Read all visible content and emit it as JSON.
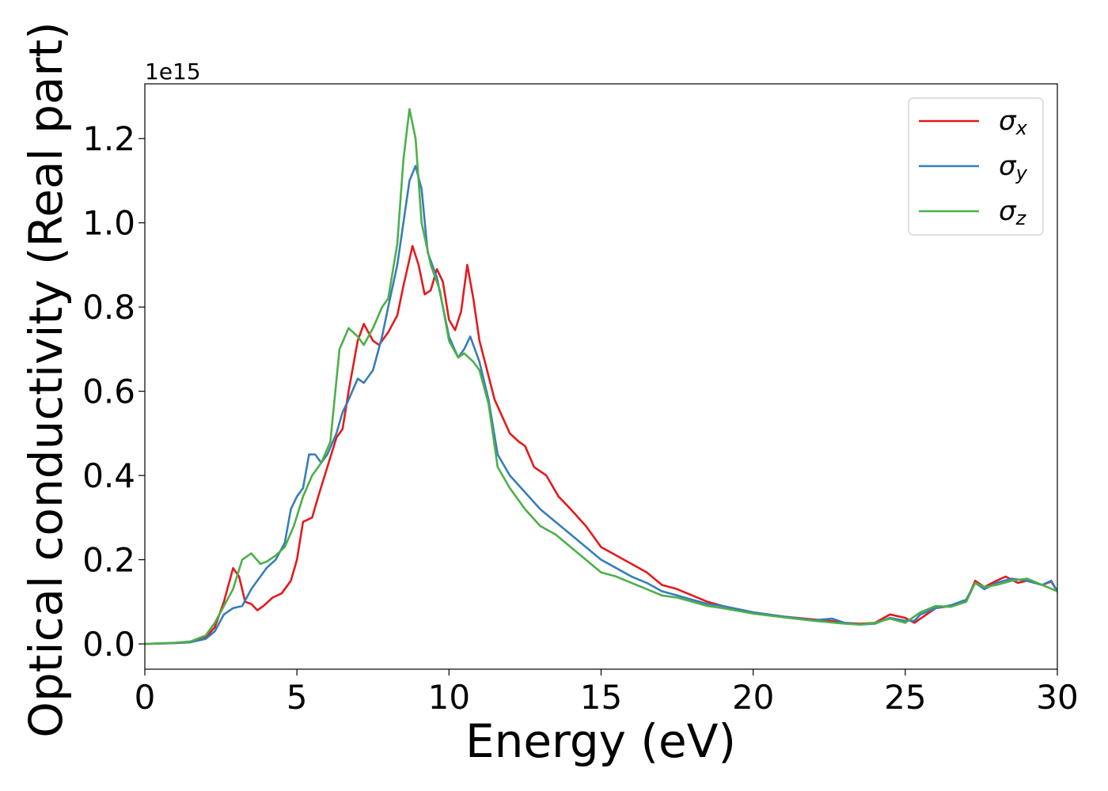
{
  "chart_data": {
    "type": "line",
    "xlabel": "Energy (eV)",
    "ylabel": "Optical conductivity (Real part)",
    "y_offset_label": "1e15",
    "xlim": [
      0,
      30
    ],
    "ylim": [
      -0.06,
      1.33
    ],
    "x_ticks": [
      0,
      5,
      10,
      15,
      20,
      25,
      30
    ],
    "x_tick_labels": [
      "0",
      "5",
      "10",
      "15",
      "20",
      "25",
      "30"
    ],
    "y_ticks": [
      0.0,
      0.2,
      0.4,
      0.6,
      0.8,
      1.0,
      1.2
    ],
    "y_tick_labels": [
      "0.0",
      "0.2",
      "0.4",
      "0.6",
      "0.8",
      "1.0",
      "1.2"
    ],
    "legend_position": "top-right",
    "series": [
      {
        "name": "σx",
        "symbol": "σ",
        "subscript": "x",
        "color": "#e41a1c",
        "points": [
          [
            0,
            0
          ],
          [
            1,
            0.002
          ],
          [
            1.5,
            0.004
          ],
          [
            2,
            0.015
          ],
          [
            2.3,
            0.04
          ],
          [
            2.6,
            0.1
          ],
          [
            2.9,
            0.18
          ],
          [
            3.1,
            0.16
          ],
          [
            3.3,
            0.1
          ],
          [
            3.5,
            0.095
          ],
          [
            3.7,
            0.08
          ],
          [
            3.9,
            0.09
          ],
          [
            4.2,
            0.11
          ],
          [
            4.5,
            0.12
          ],
          [
            4.8,
            0.15
          ],
          [
            5.0,
            0.2
          ],
          [
            5.2,
            0.29
          ],
          [
            5.5,
            0.3
          ],
          [
            5.7,
            0.35
          ],
          [
            6.0,
            0.42
          ],
          [
            6.3,
            0.49
          ],
          [
            6.5,
            0.51
          ],
          [
            6.7,
            0.6
          ],
          [
            7.0,
            0.72
          ],
          [
            7.2,
            0.76
          ],
          [
            7.5,
            0.72
          ],
          [
            7.7,
            0.71
          ],
          [
            8.0,
            0.74
          ],
          [
            8.3,
            0.78
          ],
          [
            8.5,
            0.85
          ],
          [
            8.8,
            0.945
          ],
          [
            9.0,
            0.9
          ],
          [
            9.2,
            0.83
          ],
          [
            9.4,
            0.84
          ],
          [
            9.6,
            0.89
          ],
          [
            9.8,
            0.86
          ],
          [
            10.0,
            0.77
          ],
          [
            10.2,
            0.745
          ],
          [
            10.4,
            0.79
          ],
          [
            10.6,
            0.9
          ],
          [
            10.8,
            0.82
          ],
          [
            11.0,
            0.72
          ],
          [
            11.5,
            0.58
          ],
          [
            12.0,
            0.5
          ],
          [
            12.3,
            0.48
          ],
          [
            12.5,
            0.47
          ],
          [
            12.8,
            0.42
          ],
          [
            13.2,
            0.4
          ],
          [
            13.6,
            0.35
          ],
          [
            14.0,
            0.32
          ],
          [
            14.5,
            0.28
          ],
          [
            15.0,
            0.23
          ],
          [
            15.5,
            0.21
          ],
          [
            16.0,
            0.19
          ],
          [
            16.5,
            0.17
          ],
          [
            17.0,
            0.14
          ],
          [
            17.5,
            0.13
          ],
          [
            18.0,
            0.115
          ],
          [
            18.5,
            0.1
          ],
          [
            19.0,
            0.09
          ],
          [
            20.0,
            0.075
          ],
          [
            21.0,
            0.065
          ],
          [
            22.0,
            0.058
          ],
          [
            22.5,
            0.055
          ],
          [
            23.0,
            0.05
          ],
          [
            23.5,
            0.048
          ],
          [
            24.0,
            0.05
          ],
          [
            24.5,
            0.07
          ],
          [
            25.0,
            0.062
          ],
          [
            25.3,
            0.05
          ],
          [
            25.5,
            0.06
          ],
          [
            26.0,
            0.085
          ],
          [
            26.5,
            0.09
          ],
          [
            27.0,
            0.1
          ],
          [
            27.3,
            0.15
          ],
          [
            27.6,
            0.135
          ],
          [
            28.0,
            0.15
          ],
          [
            28.3,
            0.16
          ],
          [
            28.7,
            0.145
          ],
          [
            29.0,
            0.15
          ],
          [
            29.5,
            0.14
          ],
          [
            29.8,
            0.148
          ],
          [
            30.0,
            0.125
          ]
        ]
      },
      {
        "name": "σy",
        "symbol": "σ",
        "subscript": "y",
        "color": "#377eb8",
        "points": [
          [
            0,
            0
          ],
          [
            1,
            0.002
          ],
          [
            1.5,
            0.004
          ],
          [
            2,
            0.012
          ],
          [
            2.3,
            0.03
          ],
          [
            2.6,
            0.07
          ],
          [
            2.9,
            0.085
          ],
          [
            3.2,
            0.09
          ],
          [
            3.5,
            0.13
          ],
          [
            3.8,
            0.16
          ],
          [
            4.0,
            0.18
          ],
          [
            4.3,
            0.2
          ],
          [
            4.6,
            0.24
          ],
          [
            4.8,
            0.32
          ],
          [
            5.0,
            0.35
          ],
          [
            5.2,
            0.37
          ],
          [
            5.4,
            0.45
          ],
          [
            5.6,
            0.45
          ],
          [
            5.8,
            0.43
          ],
          [
            6.0,
            0.45
          ],
          [
            6.3,
            0.5
          ],
          [
            6.5,
            0.55
          ],
          [
            6.7,
            0.58
          ],
          [
            7.0,
            0.63
          ],
          [
            7.2,
            0.62
          ],
          [
            7.5,
            0.65
          ],
          [
            7.8,
            0.73
          ],
          [
            8.0,
            0.8
          ],
          [
            8.3,
            0.9
          ],
          [
            8.5,
            1.0
          ],
          [
            8.7,
            1.1
          ],
          [
            8.9,
            1.135
          ],
          [
            9.1,
            1.08
          ],
          [
            9.3,
            0.93
          ],
          [
            9.6,
            0.87
          ],
          [
            10.0,
            0.73
          ],
          [
            10.3,
            0.68
          ],
          [
            10.5,
            0.7
          ],
          [
            10.7,
            0.73
          ],
          [
            11.0,
            0.67
          ],
          [
            11.3,
            0.58
          ],
          [
            11.6,
            0.45
          ],
          [
            12.0,
            0.4
          ],
          [
            12.5,
            0.36
          ],
          [
            13.0,
            0.32
          ],
          [
            13.5,
            0.29
          ],
          [
            14.0,
            0.26
          ],
          [
            14.5,
            0.23
          ],
          [
            15.0,
            0.2
          ],
          [
            15.5,
            0.18
          ],
          [
            16.0,
            0.16
          ],
          [
            16.5,
            0.145
          ],
          [
            17.0,
            0.125
          ],
          [
            17.5,
            0.115
          ],
          [
            18.0,
            0.105
          ],
          [
            18.5,
            0.095
          ],
          [
            19.0,
            0.09
          ],
          [
            20.0,
            0.075
          ],
          [
            21.0,
            0.065
          ],
          [
            22.0,
            0.056
          ],
          [
            22.6,
            0.06
          ],
          [
            23.0,
            0.05
          ],
          [
            23.5,
            0.046
          ],
          [
            24.0,
            0.048
          ],
          [
            24.5,
            0.062
          ],
          [
            25.0,
            0.055
          ],
          [
            25.3,
            0.055
          ],
          [
            25.5,
            0.07
          ],
          [
            26.0,
            0.085
          ],
          [
            26.5,
            0.092
          ],
          [
            27.0,
            0.105
          ],
          [
            27.3,
            0.145
          ],
          [
            27.6,
            0.13
          ],
          [
            28.0,
            0.145
          ],
          [
            28.5,
            0.155
          ],
          [
            29.0,
            0.15
          ],
          [
            29.5,
            0.14
          ],
          [
            29.8,
            0.15
          ],
          [
            30.0,
            0.125
          ]
        ]
      },
      {
        "name": "σz",
        "symbol": "σ",
        "subscript": "z",
        "color": "#4daf4a",
        "points": [
          [
            0,
            0
          ],
          [
            1,
            0.003
          ],
          [
            1.5,
            0.006
          ],
          [
            2,
            0.02
          ],
          [
            2.3,
            0.05
          ],
          [
            2.6,
            0.09
          ],
          [
            2.9,
            0.13
          ],
          [
            3.2,
            0.2
          ],
          [
            3.5,
            0.215
          ],
          [
            3.8,
            0.19
          ],
          [
            4.0,
            0.195
          ],
          [
            4.3,
            0.21
          ],
          [
            4.6,
            0.23
          ],
          [
            4.9,
            0.28
          ],
          [
            5.2,
            0.35
          ],
          [
            5.5,
            0.4
          ],
          [
            5.8,
            0.43
          ],
          [
            6.1,
            0.48
          ],
          [
            6.4,
            0.7
          ],
          [
            6.7,
            0.75
          ],
          [
            7.0,
            0.73
          ],
          [
            7.2,
            0.71
          ],
          [
            7.5,
            0.75
          ],
          [
            7.8,
            0.8
          ],
          [
            8.0,
            0.82
          ],
          [
            8.3,
            0.95
          ],
          [
            8.5,
            1.15
          ],
          [
            8.7,
            1.27
          ],
          [
            8.9,
            1.2
          ],
          [
            9.1,
            1.0
          ],
          [
            9.4,
            0.9
          ],
          [
            9.7,
            0.84
          ],
          [
            10.0,
            0.72
          ],
          [
            10.3,
            0.68
          ],
          [
            10.5,
            0.69
          ],
          [
            10.8,
            0.67
          ],
          [
            11.0,
            0.65
          ],
          [
            11.3,
            0.57
          ],
          [
            11.6,
            0.42
          ],
          [
            12.0,
            0.37
          ],
          [
            12.5,
            0.32
          ],
          [
            13.0,
            0.28
          ],
          [
            13.5,
            0.26
          ],
          [
            14.0,
            0.23
          ],
          [
            14.5,
            0.2
          ],
          [
            15.0,
            0.17
          ],
          [
            15.5,
            0.16
          ],
          [
            16.0,
            0.145
          ],
          [
            16.5,
            0.13
          ],
          [
            17.0,
            0.115
          ],
          [
            17.5,
            0.11
          ],
          [
            18.0,
            0.1
          ],
          [
            18.5,
            0.09
          ],
          [
            19.0,
            0.085
          ],
          [
            20.0,
            0.072
          ],
          [
            21.0,
            0.063
          ],
          [
            22.0,
            0.055
          ],
          [
            23.0,
            0.048
          ],
          [
            23.5,
            0.046
          ],
          [
            24.0,
            0.05
          ],
          [
            24.5,
            0.06
          ],
          [
            25.0,
            0.05
          ],
          [
            25.5,
            0.075
          ],
          [
            26.0,
            0.09
          ],
          [
            26.5,
            0.088
          ],
          [
            27.0,
            0.1
          ],
          [
            27.3,
            0.145
          ],
          [
            27.6,
            0.135
          ],
          [
            28.0,
            0.14
          ],
          [
            28.5,
            0.15
          ],
          [
            29.0,
            0.155
          ],
          [
            29.5,
            0.14
          ],
          [
            30.0,
            0.125
          ]
        ]
      }
    ]
  }
}
